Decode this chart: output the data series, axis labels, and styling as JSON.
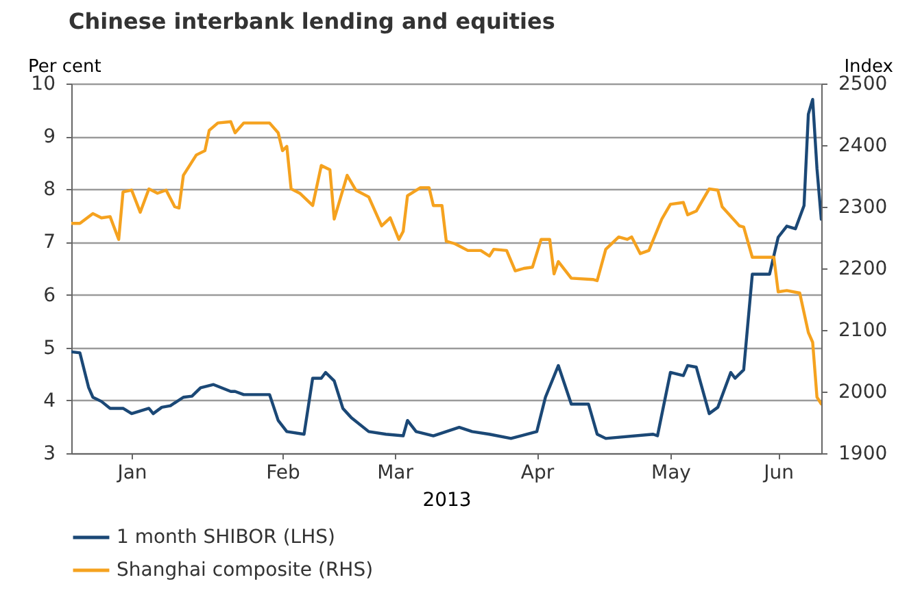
{
  "chart_data": {
    "type": "line",
    "title": "Chinese interbank lending and equities",
    "xlabel": "2013",
    "ylabel": "Per cent",
    "y2label": "Index",
    "xlim": [
      "2013-01-01",
      "2013-06-24"
    ],
    "xticks": [
      {
        "value": "2013-01-15",
        "label": "Jan"
      },
      {
        "value": "2013-02-19",
        "label": "Feb"
      },
      {
        "value": "2013-03-17",
        "label": "Mar"
      },
      {
        "value": "2013-04-19",
        "label": "Apr"
      },
      {
        "value": "2013-05-20",
        "label": "May"
      },
      {
        "value": "2013-06-14",
        "label": "Jun"
      }
    ],
    "ylim": [
      3,
      10
    ],
    "yticks": [
      3,
      4,
      5,
      6,
      7,
      8,
      9,
      10
    ],
    "y2lim": [
      1900,
      2500
    ],
    "y2ticks": [
      1900,
      2000,
      2100,
      2200,
      2300,
      2400,
      2500
    ],
    "grid": "y",
    "legend": "bottom",
    "series": [
      {
        "name": "1 month SHIBOR (LHS)",
        "color": "#1b4876",
        "x": [
          "2013-01-01",
          "2013-01-03",
          "2013-01-05",
          "2013-01-06",
          "2013-01-08",
          "2013-01-10",
          "2013-01-13",
          "2013-01-15",
          "2013-01-19",
          "2013-01-20",
          "2013-01-22",
          "2013-01-24",
          "2013-01-27",
          "2013-01-29",
          "2013-01-31",
          "2013-02-03",
          "2013-02-07",
          "2013-02-08",
          "2013-02-10",
          "2013-02-16",
          "2013-02-18",
          "2013-02-20",
          "2013-02-24",
          "2013-02-26",
          "2013-02-28",
          "2013-03-01",
          "2013-03-03",
          "2013-03-05",
          "2013-03-07",
          "2013-03-11",
          "2013-03-15",
          "2013-03-19",
          "2013-03-20",
          "2013-03-22",
          "2013-03-26",
          "2013-03-29",
          "2013-04-01",
          "2013-04-04",
          "2013-04-08",
          "2013-04-13",
          "2013-04-19",
          "2013-04-21",
          "2013-04-24",
          "2013-04-27",
          "2013-05-01",
          "2013-05-03",
          "2013-05-05",
          "2013-05-16",
          "2013-05-17",
          "2013-05-20",
          "2013-05-23",
          "2013-05-24",
          "2013-05-26",
          "2013-05-29",
          "2013-05-31",
          "2013-06-03",
          "2013-06-04",
          "2013-06-06",
          "2013-06-08",
          "2013-06-12",
          "2013-06-14",
          "2013-06-16",
          "2013-06-18",
          "2013-06-20",
          "2013-06-21",
          "2013-06-22",
          "2013-06-23",
          "2013-06-24"
        ],
        "values": [
          4.92,
          4.9,
          4.25,
          4.06,
          3.98,
          3.85,
          3.85,
          3.75,
          3.85,
          3.75,
          3.87,
          3.9,
          4.06,
          4.08,
          4.24,
          4.3,
          4.17,
          4.17,
          4.11,
          4.11,
          3.62,
          3.41,
          3.36,
          4.42,
          4.42,
          4.53,
          4.37,
          3.85,
          3.67,
          3.41,
          3.36,
          3.33,
          3.62,
          3.41,
          3.33,
          3.41,
          3.49,
          3.41,
          3.36,
          3.28,
          3.41,
          4.06,
          4.66,
          3.93,
          3.93,
          3.36,
          3.28,
          3.36,
          3.33,
          4.53,
          4.47,
          4.66,
          4.63,
          3.75,
          3.87,
          4.53,
          4.42,
          4.58,
          6.39,
          6.39,
          7.09,
          7.3,
          7.25,
          7.69,
          9.42,
          9.7,
          8.39,
          7.43
        ]
      },
      {
        "name": "Shanghai composite (RHS)",
        "color": "#f5a21f",
        "axis": "y2",
        "x": [
          "2013-01-01",
          "2013-01-03",
          "2013-01-06",
          "2013-01-08",
          "2013-01-10",
          "2013-01-12",
          "2013-01-13",
          "2013-01-15",
          "2013-01-17",
          "2013-01-19",
          "2013-01-21",
          "2013-01-23",
          "2013-01-25",
          "2013-01-26",
          "2013-01-27",
          "2013-01-30",
          "2013-02-01",
          "2013-02-02",
          "2013-02-04",
          "2013-02-07",
          "2013-02-08",
          "2013-02-10",
          "2013-02-16",
          "2013-02-18",
          "2013-02-19",
          "2013-02-20",
          "2013-02-21",
          "2013-02-23",
          "2013-02-26",
          "2013-02-28",
          "2013-03-02",
          "2013-03-03",
          "2013-03-06",
          "2013-03-08",
          "2013-03-11",
          "2013-03-14",
          "2013-03-16",
          "2013-03-18",
          "2013-03-19",
          "2013-03-20",
          "2013-03-23",
          "2013-03-25",
          "2013-03-26",
          "2013-03-28",
          "2013-03-29",
          "2013-03-31",
          "2013-04-03",
          "2013-04-06",
          "2013-04-08",
          "2013-04-09",
          "2013-04-12",
          "2013-04-14",
          "2013-04-16",
          "2013-04-18",
          "2013-04-20",
          "2013-04-22",
          "2013-04-23",
          "2013-04-24",
          "2013-04-27",
          "2013-05-02",
          "2013-05-03",
          "2013-05-05",
          "2013-05-08",
          "2013-05-10",
          "2013-05-11",
          "2013-05-13",
          "2013-05-15",
          "2013-05-18",
          "2013-05-20",
          "2013-05-23",
          "2013-05-24",
          "2013-05-26",
          "2013-05-29",
          "2013-05-31",
          "2013-06-01",
          "2013-06-05",
          "2013-06-06",
          "2013-06-08",
          "2013-06-13",
          "2013-06-14",
          "2013-06-16",
          "2013-06-19",
          "2013-06-21",
          "2013-06-22",
          "2013-06-23",
          "2013-06-24"
        ],
        "values": [
          2273,
          2273,
          2289,
          2282,
          2284,
          2247,
          2324,
          2327,
          2291,
          2329,
          2322,
          2327,
          2300,
          2298,
          2351,
          2384,
          2391,
          2424,
          2436,
          2438,
          2420,
          2436,
          2436,
          2420,
          2391,
          2398,
          2329,
          2322,
          2302,
          2367,
          2360,
          2280,
          2351,
          2327,
          2316,
          2269,
          2282,
          2247,
          2260,
          2318,
          2331,
          2331,
          2302,
          2302,
          2244,
          2240,
          2229,
          2229,
          2220,
          2231,
          2229,
          2196,
          2200,
          2202,
          2247,
          2247,
          2191,
          2211,
          2184,
          2182,
          2180,
          2231,
          2251,
          2247,
          2251,
          2224,
          2229,
          2280,
          2304,
          2307,
          2287,
          2293,
          2329,
          2327,
          2300,
          2269,
          2267,
          2218,
          2218,
          2162,
          2164,
          2160,
          2096,
          2080,
          1991,
          1980
        ]
      }
    ]
  }
}
